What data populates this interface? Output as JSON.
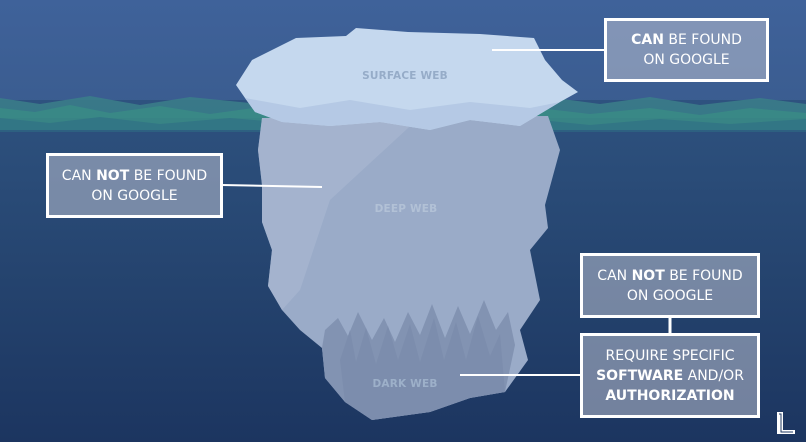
{
  "layers": {
    "surface": "SURFACE WEB",
    "deep": "DEEP WEB",
    "dark": "DARK WEB"
  },
  "callouts": {
    "surface": {
      "bold": "CAN",
      "rest": " BE FOUND",
      "line2": "ON GOOGLE"
    },
    "deep": {
      "prefix": "CAN ",
      "bold": "NOT",
      "rest": " BE FOUND",
      "line2": "ON GOOGLE"
    },
    "dark_google": {
      "prefix": "CAN ",
      "bold": "NOT",
      "rest": " BE FOUND",
      "line2": "ON GOOGLE"
    },
    "dark_software": {
      "line1": "REQUIRE SPECIFIC",
      "line2_bold": "SOFTWARE",
      "line2_rest": " AND/OR",
      "line3_bold": "AUTHORIZATION"
    }
  },
  "icons": {
    "logo": "l-logo-icon"
  },
  "colors": {
    "sky": "#3f629a",
    "water": "#1f3a63",
    "wave": "#3d8e86",
    "ice_surface": "#c5d8ee",
    "ice_deep": "#9aabc8",
    "ice_dark": "#8293b2",
    "box_border": "#ffffff"
  }
}
